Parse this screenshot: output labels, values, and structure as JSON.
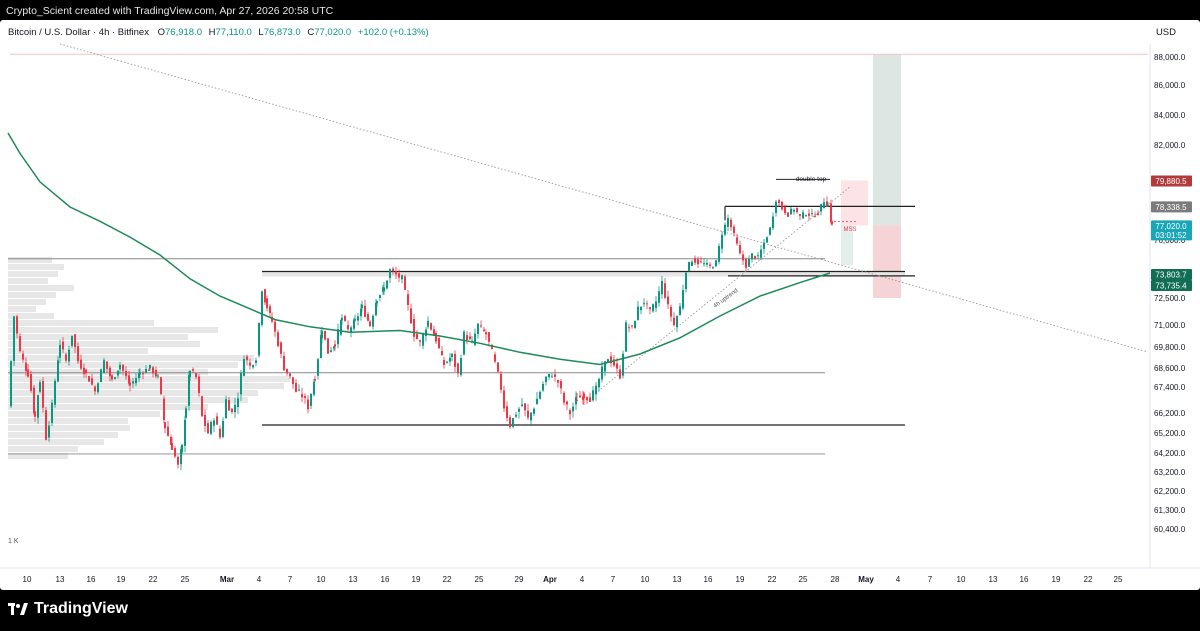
{
  "header": {
    "credit": "Crypto_Scient created with TradingView.com, Apr 27, 2026 20:58 UTC",
    "symbol": "Bitcoin / U.S. Dollar · 4h · Bitfinex",
    "o_label": "O",
    "o_value": "76,918.0",
    "h_label": "H",
    "h_value": "77,110.0",
    "l_label": "L",
    "l_value": "76,873.0",
    "c_label": "C",
    "c_value": "77,020.0",
    "change": "+102.0 (+0.13%)",
    "currency": "USD"
  },
  "footer": {
    "brand": "TradingView",
    "volume_profile_label": "1 K"
  },
  "colors": {
    "up": "#089981",
    "down": "#f23645",
    "ma": "#1d8a5a",
    "trend": "#999999",
    "level": "#555555",
    "target_zone": "#dde6e3",
    "stop_zone": "#f6d3d6",
    "badge_red": "#b23a3a",
    "badge_gray": "#7a7a7a",
    "badge_cyan": "#1aa6b7",
    "badge_green": "#116e55"
  },
  "annotations": {
    "double_top": "double top",
    "mss": "MSS",
    "uptrend": "4h uptrend"
  },
  "price_badges": {
    "stop": "79,880.5",
    "double_top": "78,338.5",
    "last_price": "77,020.0",
    "countdown": "03:01:52",
    "support_a": "73,803.7",
    "support_b": "73,735.4"
  },
  "chart_data": {
    "type": "candlestick",
    "title": "Bitcoin / U.S. Dollar · 4h · Bitfinex",
    "y_ticks": [
      88000.0,
      86000.0,
      84000.0,
      82000.0,
      76000.0,
      72500.0,
      71000.0,
      69800.0,
      68600.0,
      67400.0,
      66200.0,
      65200.0,
      64200.0,
      63200.0,
      62200.0,
      61300.0,
      60400.0
    ],
    "y_tick_labels": [
      "88,000.0",
      "86,000.0",
      "84,000.0",
      "82,000.0",
      "76,000.0",
      "72,500.0",
      "71,000.0",
      "69,800.0",
      "68,600.0",
      "67,400.0",
      "66,200.0",
      "65,200.0",
      "64,200.0",
      "63,200.0",
      "62,200.0",
      "61,300.0",
      "60,400.0"
    ],
    "x_labels": [
      "10",
      "13",
      "16",
      "19",
      "22",
      "25",
      "Mar",
      "4",
      "7",
      "10",
      "13",
      "16",
      "19",
      "22",
      "25",
      "29",
      "Apr",
      "4",
      "7",
      "10",
      "13",
      "16",
      "19",
      "22",
      "25",
      "28",
      "May",
      "4",
      "7",
      "10",
      "13",
      "16",
      "19",
      "22",
      "25"
    ],
    "x_label_is_month": [
      false,
      false,
      false,
      false,
      false,
      false,
      true,
      false,
      false,
      false,
      false,
      false,
      false,
      false,
      false,
      false,
      true,
      false,
      false,
      false,
      false,
      false,
      false,
      false,
      false,
      false,
      true,
      false,
      false,
      false,
      false,
      false,
      false,
      false,
      false
    ],
    "anchors": [
      [
        8,
        66500
      ],
      [
        14,
        71500
      ],
      [
        20,
        69500
      ],
      [
        28,
        68200
      ],
      [
        35,
        66000
      ],
      [
        40,
        67800
      ],
      [
        46,
        65000
      ],
      [
        52,
        66500
      ],
      [
        60,
        70000
      ],
      [
        66,
        69000
      ],
      [
        72,
        70500
      ],
      [
        78,
        69000
      ],
      [
        86,
        68200
      ],
      [
        95,
        67200
      ],
      [
        104,
        69000
      ],
      [
        112,
        67800
      ],
      [
        120,
        68800
      ],
      [
        130,
        67500
      ],
      [
        140,
        68300
      ],
      [
        150,
        68600
      ],
      [
        158,
        68000
      ],
      [
        165,
        65500
      ],
      [
        172,
        64500
      ],
      [
        178,
        63500
      ],
      [
        182,
        64500
      ],
      [
        186,
        66500
      ],
      [
        190,
        68500
      ],
      [
        196,
        68000
      ],
      [
        202,
        66000
      ],
      [
        208,
        65200
      ],
      [
        214,
        66000
      ],
      [
        220,
        65000
      ],
      [
        226,
        66800
      ],
      [
        232,
        66200
      ],
      [
        238,
        67000
      ],
      [
        244,
        69300
      ],
      [
        250,
        68700
      ],
      [
        256,
        69200
      ],
      [
        262,
        73000
      ],
      [
        267,
        72000
      ],
      [
        272,
        71200
      ],
      [
        278,
        70000
      ],
      [
        284,
        68600
      ],
      [
        290,
        68000
      ],
      [
        296,
        67200
      ],
      [
        302,
        67000
      ],
      [
        308,
        66500
      ],
      [
        315,
        68000
      ],
      [
        322,
        70800
      ],
      [
        328,
        69500
      ],
      [
        335,
        70000
      ],
      [
        342,
        71400
      ],
      [
        348,
        70700
      ],
      [
        355,
        71200
      ],
      [
        362,
        72000
      ],
      [
        370,
        71000
      ],
      [
        377,
        72500
      ],
      [
        384,
        73000
      ],
      [
        390,
        74000
      ],
      [
        396,
        73700
      ],
      [
        402,
        73500
      ],
      [
        408,
        72000
      ],
      [
        414,
        70500
      ],
      [
        420,
        70000
      ],
      [
        428,
        71200
      ],
      [
        436,
        70200
      ],
      [
        444,
        68800
      ],
      [
        452,
        69300
      ],
      [
        458,
        68200
      ],
      [
        464,
        70500
      ],
      [
        472,
        70000
      ],
      [
        478,
        71000
      ],
      [
        486,
        70500
      ],
      [
        492,
        69500
      ],
      [
        498,
        68200
      ],
      [
        504,
        66500
      ],
      [
        510,
        65600
      ],
      [
        516,
        66200
      ],
      [
        522,
        66600
      ],
      [
        528,
        65900
      ],
      [
        534,
        66500
      ],
      [
        540,
        67200
      ],
      [
        546,
        68000
      ],
      [
        552,
        68200
      ],
      [
        558,
        67700
      ],
      [
        564,
        66700
      ],
      [
        570,
        66200
      ],
      [
        577,
        66900
      ],
      [
        584,
        67000
      ],
      [
        590,
        66900
      ],
      [
        596,
        67300
      ],
      [
        602,
        68500
      ],
      [
        608,
        69200
      ],
      [
        614,
        68800
      ],
      [
        620,
        68100
      ],
      [
        626,
        71000
      ],
      [
        632,
        70800
      ],
      [
        638,
        71900
      ],
      [
        644,
        72300
      ],
      [
        650,
        71700
      ],
      [
        656,
        72300
      ],
      [
        662,
        73300
      ],
      [
        668,
        72000
      ],
      [
        674,
        71000
      ],
      [
        680,
        72000
      ],
      [
        686,
        74000
      ],
      [
        692,
        74700
      ],
      [
        698,
        74500
      ],
      [
        704,
        74400
      ],
      [
        710,
        74200
      ],
      [
        716,
        74500
      ],
      [
        722,
        76500
      ],
      [
        728,
        77500
      ],
      [
        734,
        76300
      ],
      [
        740,
        75000
      ],
      [
        746,
        74300
      ],
      [
        752,
        75000
      ],
      [
        758,
        74800
      ],
      [
        764,
        75800
      ],
      [
        770,
        76800
      ],
      [
        776,
        78800
      ],
      [
        782,
        78200
      ],
      [
        788,
        77800
      ],
      [
        794,
        78200
      ],
      [
        800,
        77600
      ],
      [
        806,
        77900
      ],
      [
        812,
        77700
      ],
      [
        818,
        77900
      ],
      [
        824,
        78700
      ],
      [
        828,
        78400
      ],
      [
        832,
        77000
      ]
    ],
    "moving_average": [
      [
        8,
        82800
      ],
      [
        20,
        81500
      ],
      [
        40,
        79800
      ],
      [
        70,
        78300
      ],
      [
        100,
        77300
      ],
      [
        130,
        76200
      ],
      [
        160,
        75000
      ],
      [
        190,
        73500
      ],
      [
        220,
        72600
      ],
      [
        250,
        71900
      ],
      [
        275,
        71300
      ],
      [
        310,
        70900
      ],
      [
        350,
        70600
      ],
      [
        400,
        70700
      ],
      [
        440,
        70400
      ],
      [
        480,
        70000
      ],
      [
        520,
        69500
      ],
      [
        560,
        69100
      ],
      [
        600,
        68800
      ],
      [
        640,
        69400
      ],
      [
        680,
        70300
      ],
      [
        720,
        71500
      ],
      [
        760,
        72600
      ],
      [
        800,
        73300
      ],
      [
        830,
        73800
      ]
    ],
    "levels": [
      {
        "label": "range high",
        "y": 73900,
        "x_start": 262,
        "x_end": 905
      },
      {
        "label": "double top",
        "y": 78338.5,
        "x_start": 725,
        "x_end": 915
      },
      {
        "label": "upper",
        "y": 74750,
        "x_start": 8,
        "x_end": 825
      },
      {
        "label": "mid",
        "y": 68300,
        "x_start": 8,
        "x_end": 825
      },
      {
        "label": "range low",
        "y": 65600,
        "x_start": 262,
        "x_end": 905
      },
      {
        "label": "lower",
        "y": 64150,
        "x_start": 8,
        "x_end": 825
      }
    ],
    "long_target_top": 88200,
    "long_stop_bottom": 72500,
    "stop_zone_top": 79880.5,
    "last_price": 77020.0
  }
}
